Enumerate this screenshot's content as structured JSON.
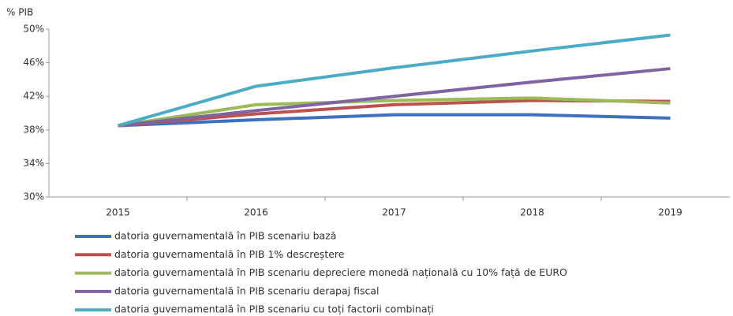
{
  "chart_data": {
    "type": "line",
    "y_label": "% PIB",
    "categories": [
      "2015",
      "2016",
      "2017",
      "2018",
      "2019"
    ],
    "ylim": [
      30,
      50
    ],
    "yticks": [
      {
        "value": 30,
        "label": "30%"
      },
      {
        "value": 34,
        "label": "34%"
      },
      {
        "value": 38,
        "label": "38%"
      },
      {
        "value": 42,
        "label": "42%"
      },
      {
        "value": 46,
        "label": "46%"
      },
      {
        "value": 50,
        "label": "50%"
      }
    ],
    "series": [
      {
        "name": "datoria guvernamentală în PIB scenariu bază",
        "color": "#3d70c0",
        "values": [
          38.5,
          39.2,
          39.8,
          39.8,
          39.4
        ]
      },
      {
        "name": "datoria guvernamentală în PIB 1% descreștere",
        "color": "#c0504d",
        "values": [
          38.5,
          39.9,
          41.0,
          41.5,
          41.4
        ]
      },
      {
        "name": "datoria guvernamentală în PIB  scenariu depreciere monedă națională cu 10% față de EURO",
        "color": "#9bbb59",
        "values": [
          38.5,
          41.0,
          41.5,
          41.8,
          41.2
        ]
      },
      {
        "name": "datoria guvernamentală în PIB scenariu derapaj fiscal",
        "color": "#8064a2",
        "values": [
          38.5,
          40.3,
          42.0,
          43.7,
          45.3
        ]
      },
      {
        "name": "datoria guvernamentală în PIB scenariu cu toți factorii combinați",
        "color": "#4bacc6",
        "values": [
          38.5,
          43.2,
          45.4,
          47.4,
          49.3
        ]
      }
    ]
  }
}
